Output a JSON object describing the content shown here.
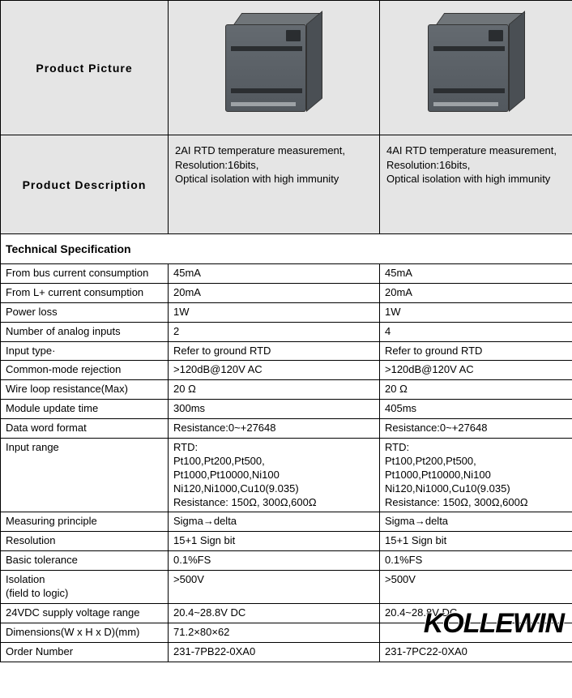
{
  "header": {
    "picture_label": "Product  Picture",
    "description_label": "Product  Description"
  },
  "products": [
    {
      "desc": "2AI RTD temperature measurement,\nResolution:16bits,\nOptical isolation with high immunity"
    },
    {
      "desc": "4AI RTD temperature measurement,\nResolution:16bits,\nOptical isolation with high immunity"
    }
  ],
  "section_title": "Technical Specification",
  "specs": [
    {
      "label": "From bus current consumption",
      "p1": "45mA",
      "p2": "45mA"
    },
    {
      "label": "From L+ current consumption",
      "p1": "20mA",
      "p2": "20mA"
    },
    {
      "label": "Power loss",
      "p1": "1W",
      "p2": "1W"
    },
    {
      "label": "Number of analog inputs",
      "p1": "2",
      "p2": "4"
    },
    {
      "label": "Input type·",
      "p1": "Refer to ground RTD",
      "p2": "Refer to ground RTD"
    },
    {
      "label": "Common-mode rejection",
      "p1": ">120dB@120V AC",
      "p2": ">120dB@120V AC"
    },
    {
      "label": "Wire loop resistance(Max)",
      "p1": "20 Ω",
      "p2": "20 Ω"
    },
    {
      "label": "Module update time",
      "p1": "300ms",
      "p2": "405ms"
    },
    {
      "label": "Data word format",
      "p1": "Resistance:0~+27648",
      "p2": "Resistance:0~+27648"
    },
    {
      "label": "Input range",
      "p1": "RTD:\nPt100,Pt200,Pt500,\nPt1000,Pt10000,Ni100\nNi120,Ni1000,Cu10(9.035)\nResistance: 150Ω, 300Ω,600Ω",
      "p2": "RTD:\nPt100,Pt200,Pt500,\nPt1000,Pt10000,Ni100\nNi120,Ni1000,Cu10(9.035)\nResistance: 150Ω, 300Ω,600Ω"
    },
    {
      "label": "Measuring principle",
      "p1": "Sigma→delta",
      "p2": "Sigma→delta"
    },
    {
      "label": "Resolution",
      "p1": "15+1 Sign bit",
      "p2": "15+1 Sign bit"
    },
    {
      "label": "Basic tolerance",
      "p1": "0.1%FS",
      "p2": "0.1%FS"
    },
    {
      "label": "Isolation\n(field to logic)",
      "p1": ">500V",
      "p2": ">500V"
    },
    {
      "label": "24VDC supply voltage range",
      "p1": "20.4~28.8V DC",
      "p2": "20.4~28.8V DC"
    },
    {
      "label": "Dimensions(W x H x D)(mm)",
      "p1": "71.2×80×62",
      "p2": ""
    },
    {
      "label": "Order Number",
      "p1": "231-7PB22-0XA0",
      "p2": "231-7PC22-0XA0"
    }
  ],
  "watermark": "KOLLEWIN",
  "style": {
    "border_color": "#000000",
    "header_bg": "#e5e5e5",
    "body_bg": "#ffffff",
    "font_size_body": 13,
    "font_size_title": 14,
    "plc_body_color": "#5b6167",
    "plc_dark": "#2b2e31"
  }
}
